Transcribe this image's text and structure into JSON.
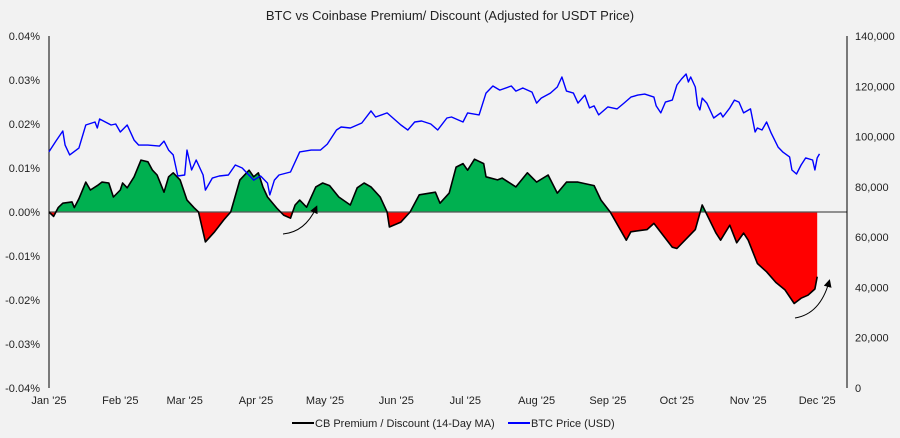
{
  "chart_data": {
    "type": "area+line",
    "title": "BTC vs Coinbase Premium/ Discount (Adjusted for USDT Price)",
    "x_ticks": [
      "Jan '25",
      "Feb '25",
      "Mar '25",
      "Apr '25",
      "May '25",
      "Jun '25",
      "Jul '25",
      "Aug '25",
      "Sep '25",
      "Oct '25",
      "Nov '25",
      "Dec '25"
    ],
    "y_left": {
      "range": [
        -0.04,
        0.04
      ],
      "unit": "%",
      "ticks": [
        "0.04%",
        "0.03%",
        "0.02%",
        "0.01%",
        "0.00%",
        "-0.01%",
        "-0.02%",
        "-0.03%",
        "-0.04%"
      ]
    },
    "y_right": {
      "range": [
        0,
        140000
      ],
      "ticks": [
        "140,000",
        "120,000",
        "100,000",
        "80,000",
        "60,000",
        "40,000",
        "20,000",
        "0"
      ]
    },
    "grid": false,
    "legend_position": "bottom",
    "colors": {
      "premium_fill": "#00b050",
      "discount_fill": "#ff0000",
      "premium_line": "#000000",
      "btc_line": "#0000ff",
      "background": "#f2f2f2"
    },
    "series": [
      {
        "name": "CB Premium / Discount (14-Day MA)",
        "axis": "left",
        "unit": "%",
        "points": [
          [
            "2025-01-01",
            0
          ],
          [
            "2025-01-03",
            -0.001
          ],
          [
            "2025-01-05",
            0.001
          ],
          [
            "2025-01-07",
            0.002
          ],
          [
            "2025-01-11",
            0.0023
          ],
          [
            "2025-01-12",
            0.001
          ],
          [
            "2025-01-14",
            0.003
          ],
          [
            "2025-01-17",
            0.0068
          ],
          [
            "2025-01-19",
            0.005
          ],
          [
            "2025-01-22",
            0.006
          ],
          [
            "2025-01-24",
            0.0068
          ],
          [
            "2025-01-27",
            0.0066
          ],
          [
            "2025-01-29",
            0.0034
          ],
          [
            "2025-02-01",
            0.005
          ],
          [
            "2025-02-02",
            0.0066
          ],
          [
            "2025-02-04",
            0.0055
          ],
          [
            "2025-02-07",
            0.008
          ],
          [
            "2025-02-10",
            0.0118
          ],
          [
            "2025-02-13",
            0.0114
          ],
          [
            "2025-02-15",
            0.0095
          ],
          [
            "2025-02-17",
            0.0084
          ],
          [
            "2025-02-20",
            0.0045
          ],
          [
            "2025-02-22",
            0.008
          ],
          [
            "2025-02-24",
            0.0089
          ],
          [
            "2025-02-27",
            0.0073
          ],
          [
            "2025-03-02",
            0.0027
          ],
          [
            "2025-03-05",
            0.001
          ],
          [
            "2025-03-07",
            0
          ],
          [
            "2025-03-10",
            -0.0068
          ],
          [
            "2025-03-14",
            -0.0045
          ],
          [
            "2025-03-18",
            -0.0018
          ],
          [
            "2025-03-21",
            0
          ],
          [
            "2025-03-25",
            0.0073
          ],
          [
            "2025-03-29",
            0.0095
          ],
          [
            "2025-03-31",
            0.008
          ],
          [
            "2025-04-02",
            0.0089
          ],
          [
            "2025-04-04",
            0.0057
          ],
          [
            "2025-04-06",
            0.0034
          ],
          [
            "2025-04-10",
            0.0009
          ],
          [
            "2025-04-13",
            -0.0007
          ],
          [
            "2025-04-16",
            -0.0014
          ],
          [
            "2025-04-18",
            0.0016
          ],
          [
            "2025-04-20",
            0.0027
          ],
          [
            "2025-04-23",
            0.0011
          ],
          [
            "2025-04-27",
            0.0057
          ],
          [
            "2025-04-30",
            0.0066
          ],
          [
            "2025-05-03",
            0.006
          ],
          [
            "2025-05-07",
            0.0034
          ],
          [
            "2025-05-12",
            0.0016
          ],
          [
            "2025-05-15",
            0.0055
          ],
          [
            "2025-05-18",
            0.0066
          ],
          [
            "2025-05-21",
            0.0057
          ],
          [
            "2025-05-25",
            0.0034
          ],
          [
            "2025-05-28",
            0
          ],
          [
            "2025-05-29",
            -0.0034
          ],
          [
            "2025-06-03",
            -0.0023
          ],
          [
            "2025-06-07",
            0
          ],
          [
            "2025-06-11",
            0.0039
          ],
          [
            "2025-06-18",
            0.0045
          ],
          [
            "2025-06-20",
            0.002
          ],
          [
            "2025-06-24",
            0.0043
          ],
          [
            "2025-06-27",
            0.0102
          ],
          [
            "2025-06-30",
            0.011
          ],
          [
            "2025-07-02",
            0.0095
          ],
          [
            "2025-07-05",
            0.012
          ],
          [
            "2025-07-09",
            0.011
          ],
          [
            "2025-07-10",
            0.008
          ],
          [
            "2025-07-15",
            0.0073
          ],
          [
            "2025-07-17",
            0.0077
          ],
          [
            "2025-07-23",
            0.0057
          ],
          [
            "2025-07-28",
            0.0089
          ],
          [
            "2025-08-01",
            0.0068
          ],
          [
            "2025-08-06",
            0.0084
          ],
          [
            "2025-08-10",
            0.0043
          ],
          [
            "2025-08-14",
            0.0068
          ],
          [
            "2025-08-19",
            0.0068
          ],
          [
            "2025-08-26",
            0.006
          ],
          [
            "2025-08-29",
            0.0027
          ],
          [
            "2025-09-02",
            0
          ],
          [
            "2025-09-09",
            -0.0064
          ],
          [
            "2025-09-11",
            -0.0045
          ],
          [
            "2025-09-18",
            -0.004
          ],
          [
            "2025-09-21",
            -0.0026
          ],
          [
            "2025-09-29",
            -0.008
          ],
          [
            "2025-10-01",
            -0.0083
          ],
          [
            "2025-10-09",
            -0.004
          ],
          [
            "2025-10-12",
            0.0016
          ],
          [
            "2025-10-18",
            -0.0048
          ],
          [
            "2025-10-20",
            -0.0064
          ],
          [
            "2025-10-24",
            -0.003
          ],
          [
            "2025-10-27",
            -0.007
          ],
          [
            "2025-10-30",
            -0.0048
          ],
          [
            "2025-11-01",
            -0.0064
          ],
          [
            "2025-11-05",
            -0.0117
          ],
          [
            "2025-11-09",
            -0.0136
          ],
          [
            "2025-11-13",
            -0.016
          ],
          [
            "2025-11-17",
            -0.0177
          ],
          [
            "2025-11-21",
            -0.0208
          ],
          [
            "2025-11-24",
            -0.0196
          ],
          [
            "2025-11-27",
            -0.0189
          ],
          [
            "2025-11-30",
            -0.0175
          ],
          [
            "2025-12-01",
            -0.0147
          ]
        ]
      },
      {
        "name": "BTC Price (USD)",
        "axis": "right",
        "points": [
          [
            "2025-01-01",
            94000
          ],
          [
            "2025-01-04",
            98200
          ],
          [
            "2025-01-07",
            102200
          ],
          [
            "2025-01-08",
            96600
          ],
          [
            "2025-01-10",
            92700
          ],
          [
            "2025-01-14",
            95400
          ],
          [
            "2025-01-17",
            104600
          ],
          [
            "2025-01-21",
            105800
          ],
          [
            "2025-01-22",
            103400
          ],
          [
            "2025-01-23",
            107000
          ],
          [
            "2025-01-28",
            104600
          ],
          [
            "2025-01-30",
            105000
          ],
          [
            "2025-02-01",
            101800
          ],
          [
            "2025-02-04",
            104600
          ],
          [
            "2025-02-07",
            98600
          ],
          [
            "2025-02-09",
            96600
          ],
          [
            "2025-02-13",
            96600
          ],
          [
            "2025-02-18",
            96200
          ],
          [
            "2025-02-20",
            98200
          ],
          [
            "2025-02-22",
            94600
          ],
          [
            "2025-02-24",
            92700
          ],
          [
            "2025-02-26",
            84300
          ],
          [
            "2025-03-01",
            84700
          ],
          [
            "2025-03-02",
            94600
          ],
          [
            "2025-03-04",
            86700
          ],
          [
            "2025-03-06",
            90700
          ],
          [
            "2025-03-09",
            84700
          ],
          [
            "2025-03-10",
            78700
          ],
          [
            "2025-03-13",
            83500
          ],
          [
            "2025-03-16",
            84300
          ],
          [
            "2025-03-20",
            84700
          ],
          [
            "2025-03-23",
            88700
          ],
          [
            "2025-03-26",
            87500
          ],
          [
            "2025-03-31",
            82700
          ],
          [
            "2025-04-03",
            84300
          ],
          [
            "2025-04-06",
            81500
          ],
          [
            "2025-04-07",
            76800
          ],
          [
            "2025-04-09",
            82700
          ],
          [
            "2025-04-11",
            84700
          ],
          [
            "2025-04-16",
            85900
          ],
          [
            "2025-04-20",
            93900
          ],
          [
            "2025-04-25",
            94600
          ],
          [
            "2025-04-29",
            94600
          ],
          [
            "2025-05-02",
            97000
          ],
          [
            "2025-05-06",
            102600
          ],
          [
            "2025-05-08",
            103800
          ],
          [
            "2025-05-12",
            103400
          ],
          [
            "2025-05-17",
            105400
          ],
          [
            "2025-05-21",
            110200
          ],
          [
            "2025-05-23",
            107800
          ],
          [
            "2025-05-28",
            109400
          ],
          [
            "2025-06-03",
            104600
          ],
          [
            "2025-06-06",
            102600
          ],
          [
            "2025-06-09",
            105800
          ],
          [
            "2025-06-12",
            106200
          ],
          [
            "2025-06-16",
            105000
          ],
          [
            "2025-06-19",
            102600
          ],
          [
            "2025-06-23",
            107400
          ],
          [
            "2025-06-25",
            107800
          ],
          [
            "2025-06-30",
            105800
          ],
          [
            "2025-07-02",
            109400
          ],
          [
            "2025-07-07",
            108600
          ],
          [
            "2025-07-10",
            117300
          ],
          [
            "2025-07-13",
            120100
          ],
          [
            "2025-07-16",
            118500
          ],
          [
            "2025-07-21",
            120100
          ],
          [
            "2025-07-23",
            118100
          ],
          [
            "2025-07-26",
            119300
          ],
          [
            "2025-07-30",
            117700
          ],
          [
            "2025-08-01",
            113300
          ],
          [
            "2025-08-03",
            115300
          ],
          [
            "2025-08-07",
            117300
          ],
          [
            "2025-08-10",
            119700
          ],
          [
            "2025-08-12",
            123700
          ],
          [
            "2025-08-14",
            118100
          ],
          [
            "2025-08-17",
            117300
          ],
          [
            "2025-08-19",
            113300
          ],
          [
            "2025-08-22",
            116500
          ],
          [
            "2025-08-24",
            111400
          ],
          [
            "2025-08-26",
            112200
          ],
          [
            "2025-08-28",
            108600
          ],
          [
            "2025-09-01",
            111800
          ],
          [
            "2025-09-05",
            111000
          ],
          [
            "2025-09-08",
            113300
          ],
          [
            "2025-09-11",
            115700
          ],
          [
            "2025-09-14",
            116500
          ],
          [
            "2025-09-17",
            116900
          ],
          [
            "2025-09-21",
            115700
          ],
          [
            "2025-09-22",
            112200
          ],
          [
            "2025-09-24",
            109400
          ],
          [
            "2025-09-26",
            113700
          ],
          [
            "2025-09-29",
            114500
          ],
          [
            "2025-10-01",
            120500
          ],
          [
            "2025-10-03",
            122900
          ],
          [
            "2025-10-05",
            124900
          ],
          [
            "2025-10-06",
            121700
          ],
          [
            "2025-10-07",
            123700
          ],
          [
            "2025-10-09",
            119700
          ],
          [
            "2025-10-10",
            112500
          ],
          [
            "2025-10-11",
            110600
          ],
          [
            "2025-10-12",
            115300
          ],
          [
            "2025-10-14",
            113300
          ],
          [
            "2025-10-17",
            107400
          ],
          [
            "2025-10-20",
            109400
          ],
          [
            "2025-10-21",
            107800
          ],
          [
            "2025-10-24",
            111400
          ],
          [
            "2025-10-26",
            114500
          ],
          [
            "2025-10-28",
            113700
          ],
          [
            "2025-10-30",
            109400
          ],
          [
            "2025-11-02",
            111000
          ],
          [
            "2025-11-04",
            101800
          ],
          [
            "2025-11-05",
            103400
          ],
          [
            "2025-11-07",
            102600
          ],
          [
            "2025-11-09",
            105800
          ],
          [
            "2025-11-11",
            101400
          ],
          [
            "2025-11-14",
            95800
          ],
          [
            "2025-11-16",
            93900
          ],
          [
            "2025-11-19",
            91900
          ],
          [
            "2025-11-20",
            86700
          ],
          [
            "2025-11-22",
            85100
          ],
          [
            "2025-11-24",
            88700
          ],
          [
            "2025-11-26",
            91500
          ],
          [
            "2025-11-29",
            90700
          ],
          [
            "2025-11-30",
            86700
          ],
          [
            "2025-12-01",
            91500
          ],
          [
            "2025-12-02",
            93100
          ]
        ]
      }
    ],
    "annotations": [
      {
        "type": "curved-arrow",
        "near": "2025-04-20",
        "direction": "up"
      },
      {
        "type": "curved-arrow",
        "near": "2025-12-01",
        "direction": "up"
      }
    ]
  }
}
